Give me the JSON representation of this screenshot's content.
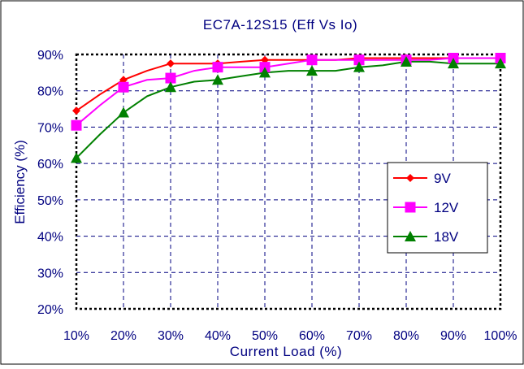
{
  "chart_data": {
    "type": "line",
    "title": "EC7A-12S15   (Eff Vs Io)",
    "xlabel": "Current Load (%)",
    "ylabel": "Efficiency (%)",
    "x_ticks": [
      "10%",
      "20%",
      "30%",
      "40%",
      "50%",
      "60%",
      "70%",
      "80%",
      "90%",
      "100%"
    ],
    "y_ticks": [
      "20%",
      "30%",
      "40%",
      "50%",
      "60%",
      "70%",
      "80%",
      "90%"
    ],
    "xlim": [
      10,
      100
    ],
    "ylim": [
      20,
      90
    ],
    "grid": true,
    "legend_position": "right",
    "x": [
      10,
      20,
      30,
      40,
      50,
      60,
      70,
      80,
      90,
      100
    ],
    "series": [
      {
        "name": "9V",
        "color": "#ff0000",
        "marker": "diamond",
        "points": [
          [
            10,
            74.5
          ],
          [
            15,
            79
          ],
          [
            20,
            83
          ],
          [
            25,
            85.5
          ],
          [
            30,
            87.5
          ],
          [
            35,
            87.5
          ],
          [
            40,
            87.5
          ],
          [
            45,
            88
          ],
          [
            50,
            88.5
          ],
          [
            55,
            88.5
          ],
          [
            60,
            88.5
          ],
          [
            65,
            88.5
          ],
          [
            70,
            89
          ],
          [
            75,
            89
          ],
          [
            80,
            89
          ],
          [
            85,
            89
          ],
          [
            90,
            89
          ],
          [
            95,
            89
          ],
          [
            100,
            89
          ]
        ]
      },
      {
        "name": "12V",
        "color": "#ff00ff",
        "marker": "square",
        "points": [
          [
            10,
            70.5
          ],
          [
            15,
            76
          ],
          [
            20,
            81
          ],
          [
            25,
            83
          ],
          [
            30,
            83.5
          ],
          [
            35,
            85.5
          ],
          [
            40,
            86.5
          ],
          [
            45,
            86.5
          ],
          [
            50,
            86.5
          ],
          [
            55,
            87.5
          ],
          [
            60,
            88.5
          ],
          [
            65,
            88.5
          ],
          [
            70,
            88.5
          ],
          [
            75,
            88.5
          ],
          [
            80,
            88.5
          ],
          [
            85,
            88.5
          ],
          [
            90,
            89
          ],
          [
            95,
            89
          ],
          [
            100,
            89
          ]
        ]
      },
      {
        "name": "18V",
        "color": "#008000",
        "marker": "triangle",
        "points": [
          [
            10,
            61.5
          ],
          [
            15,
            68
          ],
          [
            20,
            74
          ],
          [
            25,
            78.5
          ],
          [
            30,
            81
          ],
          [
            35,
            82.5
          ],
          [
            40,
            83
          ],
          [
            45,
            84
          ],
          [
            50,
            85
          ],
          [
            55,
            85.5
          ],
          [
            60,
            85.5
          ],
          [
            65,
            85.5
          ],
          [
            70,
            86.5
          ],
          [
            75,
            87
          ],
          [
            80,
            88
          ],
          [
            85,
            88
          ],
          [
            90,
            87.5
          ],
          [
            95,
            87.5
          ],
          [
            100,
            87.5
          ]
        ]
      }
    ]
  }
}
